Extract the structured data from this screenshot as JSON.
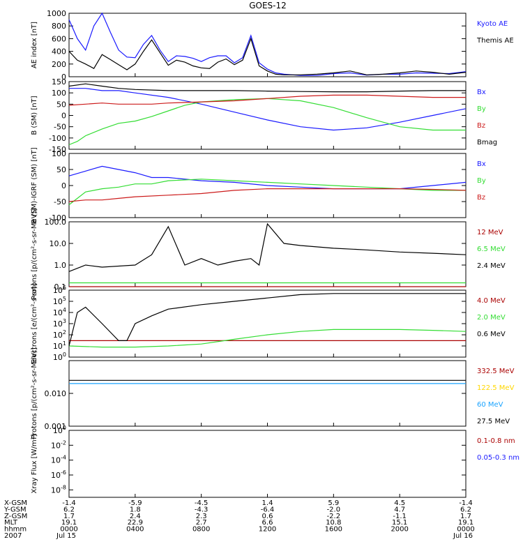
{
  "title": "GOES-12",
  "colors": {
    "black": "#000000",
    "blue": "#1a1aff",
    "red": "#cc1a1a",
    "green": "#33dd33",
    "darkred": "#aa0000",
    "yellow": "#ffd700",
    "cyan": "#1aa3ff",
    "axis": "#000000",
    "bg": "#ffffff"
  },
  "chart_data": [
    {
      "type": "line",
      "ylabel": "AE index [nT]",
      "ylim": [
        0,
        1000
      ],
      "yscale": "linear",
      "yticks": [
        0,
        200,
        400,
        600,
        800,
        1000
      ],
      "ytick_labels": [
        "0",
        "200",
        "400",
        "600",
        "800",
        "1000"
      ],
      "series": [
        {
          "name": "Kyoto AE",
          "color": "blue",
          "x": [
            0,
            0.5,
            1,
            1.5,
            2,
            2.5,
            3,
            3.5,
            4,
            4.5,
            5,
            5.5,
            6,
            6.5,
            7,
            7.5,
            8,
            8.5,
            9,
            9.5,
            10,
            10.5,
            11,
            11.5,
            12,
            12.5,
            13,
            14,
            15,
            16,
            17,
            18,
            19,
            20,
            21,
            22,
            23,
            24
          ],
          "y": [
            900,
            600,
            420,
            800,
            1000,
            700,
            420,
            310,
            300,
            510,
            650,
            420,
            240,
            330,
            320,
            290,
            240,
            300,
            330,
            330,
            220,
            300,
            650,
            220,
            120,
            60,
            40,
            20,
            20,
            50,
            60,
            25,
            40,
            40,
            60,
            55,
            50,
            80
          ]
        },
        {
          "name": "Themis AE",
          "color": "black",
          "x": [
            0,
            0.5,
            1,
            1.5,
            2,
            2.5,
            3,
            3.5,
            4,
            4.5,
            5,
            5.5,
            6,
            6.5,
            7,
            7.5,
            8,
            8.5,
            9,
            9.5,
            10,
            10.5,
            11,
            11.5,
            12,
            12.5,
            13,
            14,
            15,
            16,
            17,
            18,
            19,
            20,
            21,
            22,
            23,
            24
          ],
          "y": [
            400,
            260,
            200,
            130,
            350,
            270,
            190,
            110,
            200,
            400,
            580,
            380,
            180,
            260,
            230,
            170,
            140,
            130,
            230,
            280,
            190,
            260,
            600,
            170,
            90,
            40,
            30,
            30,
            40,
            60,
            90,
            30,
            40,
            60,
            90,
            70,
            40,
            70
          ]
        }
      ]
    },
    {
      "type": "line",
      "ylabel": "B (SM) [nT]",
      "ylim": [
        -150,
        150
      ],
      "yscale": "linear",
      "yticks": [
        -150,
        -100,
        -50,
        0,
        50,
        100,
        150
      ],
      "ytick_labels": [
        "-150",
        "-100",
        "-50",
        "0",
        "50",
        "100",
        "150"
      ],
      "series": [
        {
          "name": "Bx",
          "color": "blue",
          "x": [
            0,
            1,
            2,
            3,
            4,
            6,
            8,
            10,
            12,
            14,
            16,
            18,
            20,
            22,
            24
          ],
          "y": [
            120,
            120,
            110,
            110,
            100,
            80,
            50,
            15,
            -20,
            -50,
            -65,
            -55,
            -30,
            0,
            30
          ]
        },
        {
          "name": "By",
          "color": "green",
          "x": [
            0,
            0.5,
            1,
            2,
            3,
            4,
            5,
            6,
            7,
            8,
            10,
            12,
            14,
            16,
            18,
            20,
            22,
            24
          ],
          "y": [
            -130,
            -115,
            -90,
            -60,
            -35,
            -25,
            -5,
            20,
            45,
            60,
            70,
            75,
            65,
            35,
            -10,
            -50,
            -65,
            -65
          ]
        },
        {
          "name": "Bz",
          "color": "red",
          "x": [
            0,
            1,
            2,
            3,
            4,
            5,
            6,
            8,
            10,
            12,
            14,
            16,
            18,
            20,
            22,
            24
          ],
          "y": [
            45,
            50,
            55,
            50,
            50,
            50,
            55,
            60,
            65,
            75,
            85,
            90,
            90,
            85,
            80,
            80
          ]
        },
        {
          "name": "Bmag",
          "color": "black",
          "x": [
            0,
            1,
            2,
            3,
            4,
            6,
            8,
            10,
            12,
            14,
            16,
            18,
            20,
            22,
            24
          ],
          "y": [
            130,
            140,
            130,
            120,
            115,
            110,
            110,
            110,
            108,
            106,
            105,
            105,
            108,
            110,
            110
          ]
        }
      ]
    },
    {
      "type": "line",
      "ylabel": "B (SM)-IGRF (SM) [nT]",
      "ylim": [
        -100,
        100
      ],
      "yscale": "linear",
      "yticks": [
        -100,
        -50,
        0,
        50,
        100
      ],
      "ytick_labels": [
        "-100",
        "-50",
        "0",
        "50",
        "100"
      ],
      "series": [
        {
          "name": "Bx",
          "color": "blue",
          "x": [
            0,
            1,
            2,
            3,
            4,
            5,
            6,
            8,
            10,
            12,
            14,
            16,
            18,
            20,
            22,
            24
          ],
          "y": [
            30,
            45,
            60,
            50,
            40,
            25,
            25,
            15,
            10,
            0,
            -5,
            -10,
            -10,
            -10,
            0,
            10
          ]
        },
        {
          "name": "By",
          "color": "green",
          "x": [
            0,
            0.5,
            1,
            2,
            3,
            4,
            5,
            6,
            8,
            10,
            12,
            14,
            16,
            18,
            20,
            22,
            24
          ],
          "y": [
            -60,
            -40,
            -20,
            -10,
            -5,
            5,
            5,
            15,
            20,
            15,
            10,
            5,
            0,
            -5,
            -10,
            -15,
            -15
          ]
        },
        {
          "name": "Bz",
          "color": "red",
          "x": [
            0,
            1,
            2,
            3,
            4,
            6,
            8,
            10,
            12,
            14,
            16,
            18,
            20,
            22,
            24
          ],
          "y": [
            -50,
            -45,
            -45,
            -40,
            -35,
            -30,
            -25,
            -15,
            -10,
            -10,
            -10,
            -10,
            -10,
            -12,
            -15
          ]
        }
      ]
    },
    {
      "type": "line",
      "ylabel": "Protons [p/(cm²-s-sr-MeV)]",
      "ylim": [
        0.1,
        100
      ],
      "yscale": "log",
      "yticks": [
        0.1,
        1,
        10,
        100
      ],
      "ytick_labels": [
        "0.1",
        "1.0",
        "10.0",
        "100.0"
      ],
      "series": [
        {
          "name": "12 MeV",
          "color": "darkred",
          "x": [
            0,
            24
          ],
          "y": [
            0.1,
            0.1
          ]
        },
        {
          "name": "6.5 MeV",
          "color": "green",
          "x": [
            0,
            24
          ],
          "y": [
            0.15,
            0.15
          ]
        },
        {
          "name": "2.4 MeV",
          "color": "black",
          "x": [
            0,
            1,
            2,
            4,
            5,
            6,
            7,
            8,
            9,
            10,
            11,
            11.5,
            12,
            13,
            14,
            16,
            18,
            20,
            22,
            24
          ],
          "y": [
            0.5,
            1,
            0.8,
            1,
            3,
            60,
            1,
            2,
            1,
            1.5,
            2,
            1,
            80,
            10,
            8,
            6,
            5,
            4,
            3.5,
            3
          ]
        }
      ]
    },
    {
      "type": "line",
      "ylabel": "Electrons [e/(cm²-s-sr)]",
      "ylim": [
        1,
        1000000
      ],
      "yscale": "log",
      "yticks": [
        1,
        10,
        100,
        1000,
        10000,
        100000,
        1000000
      ],
      "ytick_labels": [
        "10^0",
        "10^1",
        "10^2",
        "10^3",
        "10^4",
        "10^5",
        "10^6"
      ],
      "series": [
        {
          "name": "4.0 MeV",
          "color": "darkred",
          "x": [
            0,
            24
          ],
          "y": [
            30,
            30
          ]
        },
        {
          "name": "2.0 MeV",
          "color": "green",
          "x": [
            0,
            2,
            4,
            6,
            8,
            10,
            12,
            14,
            16,
            18,
            20,
            22,
            24
          ],
          "y": [
            10,
            8,
            8,
            10,
            15,
            40,
            100,
            200,
            300,
            300,
            300,
            250,
            200
          ]
        },
        {
          "name": "0.6 MeV",
          "color": "black",
          "x": [
            0,
            0.5,
            1,
            2,
            3,
            3.5,
            4,
            5,
            6,
            8,
            10,
            12,
            14,
            16,
            18,
            20,
            22,
            24
          ],
          "y": [
            10,
            10000,
            30000,
            1000,
            30,
            30,
            1000,
            5000,
            20000,
            50000,
            100000,
            200000,
            400000,
            500000,
            500000,
            500000,
            500000,
            500000
          ]
        }
      ]
    },
    {
      "type": "line",
      "ylabel": "Protons [p/(cm²-s-sr-MeV)]",
      "ylim": [
        0.001,
        0.1
      ],
      "yscale": "log",
      "yticks": [
        0.001,
        0.01
      ],
      "ytick_labels": [
        "0.001",
        "0.010"
      ],
      "series": [
        {
          "name": "332.5 MeV",
          "color": "darkred",
          "x": [],
          "y": []
        },
        {
          "name": "122.5 MeV",
          "color": "yellow",
          "x": [],
          "y": []
        },
        {
          "name": "60 MeV",
          "color": "cyan",
          "x": [
            0,
            24
          ],
          "y": [
            0.02,
            0.02
          ]
        },
        {
          "name": "27.5 MeV",
          "color": "black",
          "x": [
            0,
            24
          ],
          "y": [
            0.025,
            0.025
          ]
        }
      ]
    },
    {
      "type": "line",
      "ylabel": "Xray Flux [W/m²]",
      "ylim": [
        1e-09,
        1
      ],
      "yscale": "log",
      "yticks": [
        1e-08,
        1e-06,
        0.0001,
        0.01,
        1
      ],
      "ytick_labels": [
        "10^-8",
        "10^-6",
        "10^-4",
        "10^-2",
        "10^0"
      ],
      "series": [
        {
          "name": "0.1-0.8 nm",
          "color": "darkred",
          "x": [],
          "y": []
        },
        {
          "name": "0.05-0.3 nm",
          "color": "blue",
          "x": [],
          "y": []
        }
      ]
    }
  ],
  "xaxis": {
    "range_hours": [
      0,
      24
    ],
    "row_labels": [
      "X-GSM",
      "Y-GSM",
      "Z-GSM",
      "MLT",
      "hhmm",
      "2007"
    ],
    "ticks": [
      {
        "hour": 0,
        "values": [
          "-1.4",
          "6.2",
          "1.7",
          "19.1",
          "0000",
          "Jul 15"
        ]
      },
      {
        "hour": 4,
        "values": [
          "-5.9",
          "1.8",
          "2.4",
          "22.9",
          "0400",
          ""
        ]
      },
      {
        "hour": 8,
        "values": [
          "-4.5",
          "-4.3",
          "2.3",
          "2.7",
          "0800",
          ""
        ]
      },
      {
        "hour": 12,
        "values": [
          "1.4",
          "-6.4",
          "0.6",
          "6.6",
          "1200",
          ""
        ]
      },
      {
        "hour": 16,
        "values": [
          "5.9",
          "-2.0",
          "-2.2",
          "10.8",
          "1600",
          ""
        ]
      },
      {
        "hour": 20,
        "values": [
          "4.5",
          "4.7",
          "-1.1",
          "15.1",
          "2000",
          ""
        ]
      },
      {
        "hour": 24,
        "values": [
          "-1.4",
          "6.2",
          "1.7",
          "19.1",
          "0000",
          "Jul 16"
        ]
      }
    ]
  }
}
